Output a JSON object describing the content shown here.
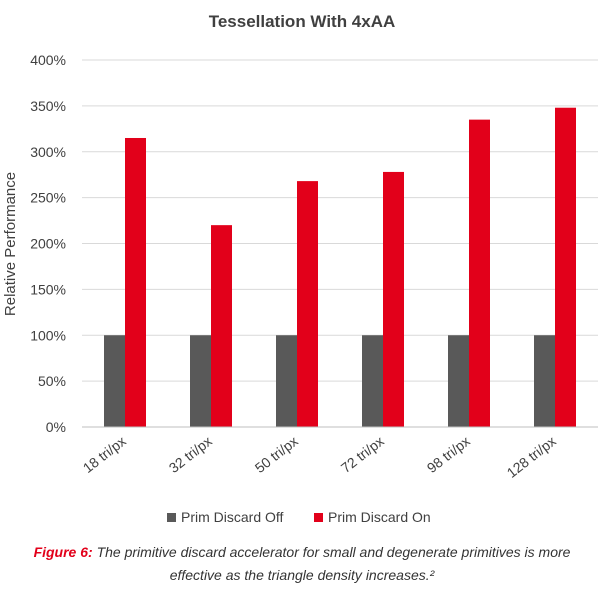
{
  "chart_data": {
    "type": "bar",
    "title": "Tessellation With 4xAA",
    "ylabel": "Relative Performance",
    "xlabel": "",
    "categories": [
      "18 tri/px",
      "32 tri/px",
      "50 tri/px",
      "72 tri/px",
      "98 tri/px",
      "128 tri/px"
    ],
    "series": [
      {
        "name": "Prim Discard Off",
        "values": [
          100,
          100,
          100,
          100,
          100,
          100
        ],
        "color": "#595959"
      },
      {
        "name": "Prim Discard On",
        "values": [
          315,
          220,
          268,
          278,
          335,
          348
        ],
        "color": "#e2001a"
      }
    ],
    "ylim": [
      0,
      400
    ],
    "yticks": [
      0,
      50,
      100,
      150,
      200,
      250,
      300,
      350,
      400
    ],
    "ytick_labels": [
      "0%",
      "50%",
      "100%",
      "150%",
      "200%",
      "250%",
      "300%",
      "350%",
      "400%"
    ],
    "grid": true,
    "legend_position": "bottom"
  },
  "caption": {
    "lead": "Figure 6:",
    "text": "The primitive discard accelerator for small and degenerate primitives is more effective as the triangle density increases.²"
  }
}
